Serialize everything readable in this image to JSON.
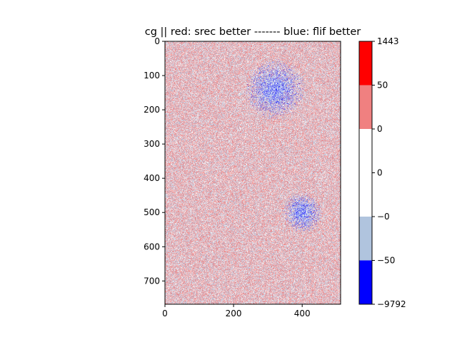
{
  "chart_data": {
    "type": "heatmap",
    "title": "cg || red: srec better ------- blue: flif better",
    "xlim": [
      0,
      512
    ],
    "ylim": [
      768,
      0
    ],
    "x_ticks": [
      0,
      200,
      400
    ],
    "y_ticks": [
      0,
      100,
      200,
      300,
      400,
      500,
      600,
      700
    ],
    "x_tick_labels": [
      "0",
      "200",
      "400"
    ],
    "y_tick_labels": [
      "0",
      "100",
      "200",
      "300",
      "400",
      "500",
      "600",
      "700"
    ],
    "colorbar": {
      "boundaries": [
        -9792,
        -50,
        0,
        0,
        0,
        50,
        1443
      ],
      "tick_labels": [
        "−9792",
        "−50",
        "−0",
        "0",
        "0",
        "50",
        "1443"
      ],
      "colors": [
        "#0000ff",
        "#b0c4de",
        "#ffffff",
        "#ffffff",
        "#f08080",
        "#ff0000"
      ]
    },
    "colors": {
      "strong_blue": "#0000ff",
      "light_blue": "#b0c4de",
      "white": "#ffffff",
      "light_red": "#f08080",
      "strong_red": "#ff0000"
    },
    "regions": [
      {
        "name": "upper-arc",
        "cx": 320,
        "cy": 140,
        "r": 90
      },
      {
        "name": "lower-blob",
        "cx": 400,
        "cy": 500,
        "r": 60
      }
    ]
  }
}
